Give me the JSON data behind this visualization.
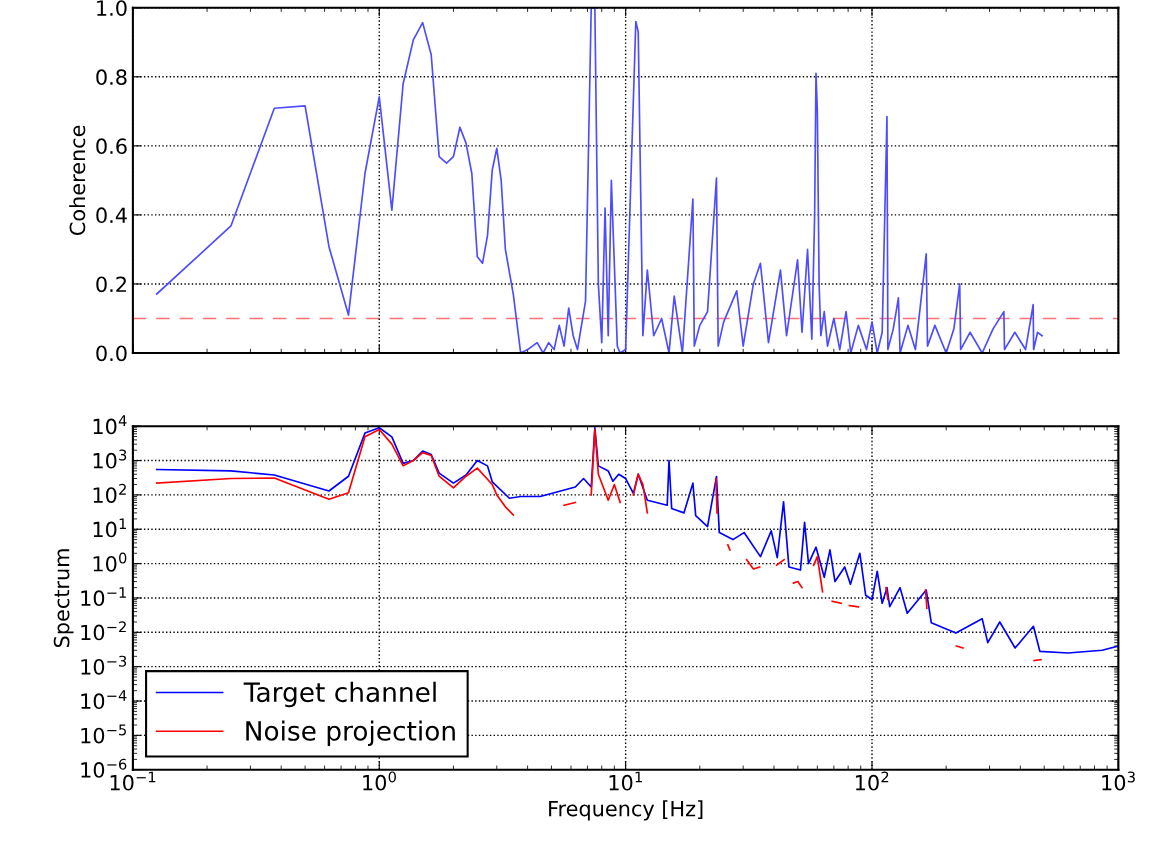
{
  "chart_data": [
    {
      "type": "line",
      "ylabel": "Coherence",
      "log": "x",
      "grid": true,
      "tick_labels": "y",
      "xlim": [
        0.1,
        1000
      ],
      "xticks": [
        {
          "value": 0.1,
          "label": null
        },
        {
          "value": 1,
          "label": null
        },
        {
          "value": 10,
          "label": null
        },
        {
          "value": 100,
          "label": null
        },
        {
          "value": 1000,
          "label": null
        }
      ],
      "ylim": [
        0,
        1.0
      ],
      "yticks": [
        {
          "value": 0,
          "label": "0.0"
        },
        {
          "value": 0.2,
          "label": "0.2"
        },
        {
          "value": 0.4,
          "label": "0.4"
        },
        {
          "value": 0.6,
          "label": "0.6"
        },
        {
          "value": 0.8,
          "label": "0.8"
        },
        {
          "value": 1.0,
          "label": "1.0"
        }
      ],
      "ref_lines": [
        {
          "axis": "y",
          "value": 0.1,
          "color": "#ff7070",
          "line_style": "dashed"
        }
      ],
      "series": [
        {
          "color": "#4d4dff",
          "x": [
            0.125,
            0.25,
            0.375,
            0.5,
            0.625,
            0.75,
            0.875,
            1.0,
            1.125,
            1.25,
            1.375,
            1.5,
            1.625,
            1.75,
            1.875,
            2.0,
            2.125,
            2.25,
            2.375,
            2.5,
            2.625,
            2.75,
            2.875,
            3.0,
            3.125,
            3.25,
            3.5,
            3.75,
            4.0,
            4.375,
            4.625,
            4.875,
            5.125,
            5.375,
            5.625,
            5.875,
            6.125,
            6.375,
            6.875,
            7.25,
            7.5,
            7.75,
            8.0,
            8.25,
            8.5,
            8.75,
            9.25,
            9.5,
            10.0,
            10.5,
            11.0,
            11.25,
            11.75,
            12.25,
            13.0,
            14.0,
            15.0,
            15.75,
            17.0,
            18.75,
            19.0,
            20.0,
            21.5,
            23.375,
            23.75,
            25.0,
            28.25,
            30.0,
            33.0,
            35.25,
            38.0,
            42.5,
            45.0,
            49.875,
            52.0,
            54.75,
            57.0,
            58.5,
            59.25,
            60.0,
            61.0,
            62.0,
            64.0,
            66.0,
            70.0,
            74.0,
            78.5,
            82.0,
            88.0,
            95.0,
            100.0,
            105.0,
            110.0,
            115.0,
            116.0,
            122.0,
            128.0,
            130.0,
            140.0,
            150.0,
            166.0,
            168.0,
            180.0,
            200.0,
            215.0,
            227.0,
            229.0,
            250.0,
            280.0,
            310.0,
            343.0,
            345.0,
            380.0,
            420.0,
            451.0,
            453.0,
            470.0,
            490.0
          ],
          "values": [
            0.171,
            0.368,
            0.709,
            0.716,
            0.308,
            0.11,
            0.52,
            0.742,
            0.414,
            0.78,
            0.907,
            0.957,
            0.864,
            0.569,
            0.55,
            0.569,
            0.654,
            0.608,
            0.52,
            0.279,
            0.26,
            0.34,
            0.53,
            0.593,
            0.5,
            0.3,
            0.17,
            0.0,
            0.01,
            0.03,
            0.0,
            0.03,
            0.01,
            0.08,
            0.02,
            0.13,
            0.05,
            0.01,
            0.15,
            1.0,
            1.0,
            0.2,
            0.03,
            0.42,
            0.05,
            0.5,
            0.02,
            0.0,
            0.01,
            0.5,
            0.96,
            0.93,
            0.05,
            0.24,
            0.05,
            0.1,
            0.0,
            0.165,
            0.0,
            0.446,
            0.02,
            0.08,
            0.12,
            0.507,
            0.02,
            0.09,
            0.18,
            0.02,
            0.2,
            0.26,
            0.03,
            0.24,
            0.05,
            0.27,
            0.06,
            0.3,
            0.04,
            0.4,
            0.81,
            0.7,
            0.2,
            0.05,
            0.12,
            0.02,
            0.1,
            0.01,
            0.12,
            0.0,
            0.08,
            0.01,
            0.09,
            0.0,
            0.06,
            0.685,
            0.01,
            0.07,
            0.16,
            0.0,
            0.08,
            0.01,
            0.287,
            0.02,
            0.08,
            0.0,
            0.07,
            0.2,
            0.01,
            0.06,
            0.0,
            0.07,
            0.12,
            0.01,
            0.06,
            0.01,
            0.14,
            0.01,
            0.06,
            0.05
          ]
        }
      ]
    },
    {
      "type": "line",
      "xlabel": "Frequency [Hz]",
      "ylabel": "Spectrum",
      "log": "xy",
      "grid": true,
      "legend": "lower left",
      "xlim": [
        0.1,
        1000
      ],
      "xticks": [
        {
          "value": 0.1,
          "label": "10$^{−1}$"
        },
        {
          "value": 1,
          "label": "10$^{0}$"
        },
        {
          "value": 10,
          "label": "10$^{1}$"
        },
        {
          "value": 100,
          "label": "10$^{2}$"
        },
        {
          "value": 1000,
          "label": "10$^{3}$"
        }
      ],
      "ylim": [
        1e-06,
        10000.0
      ],
      "yticks": [
        {
          "value": 1e-06,
          "label": "10$^{−6}$"
        },
        {
          "value": 1e-05,
          "label": "10$^{−5}$"
        },
        {
          "value": 0.0001,
          "label": "10$^{−4}$"
        },
        {
          "value": 0.001,
          "label": "10$^{−3}$"
        },
        {
          "value": 0.01,
          "label": "10$^{−2}$"
        },
        {
          "value": 0.1,
          "label": "10$^{−1}$"
        },
        {
          "value": 1,
          "label": "10$^{0}$"
        },
        {
          "value": 10,
          "label": "10$^{1}$"
        },
        {
          "value": 100,
          "label": "10$^{2}$"
        },
        {
          "value": 1000,
          "label": "10$^{3}$"
        },
        {
          "value": 10000,
          "label": "10$^{4}$"
        }
      ],
      "series": [
        {
          "name": "Target channel",
          "color": "#0000ff",
          "x": [
            0.125,
            0.25,
            0.375,
            0.625,
            0.75,
            0.875,
            1.0,
            1.125,
            1.25,
            1.375,
            1.5,
            1.625,
            1.75,
            2.0,
            2.25,
            2.5,
            2.75,
            2.875,
            3.375,
            3.75,
            4.5,
            5.125,
            6.25,
            6.75,
            7.25,
            7.5,
            7.75,
            8.5,
            8.875,
            9.375,
            10.0,
            10.75,
            11.25,
            12.25,
            14.75,
            15.0,
            15.375,
            17.25,
            18.75,
            19.25,
            21.5,
            23.375,
            24.0,
            27.25,
            30.25,
            35.25,
            39.0,
            41.25,
            43.75,
            46.0,
            51.25,
            53.25,
            55.25,
            59.25,
            64.0,
            67.5,
            70.75,
            77.5,
            81.75,
            89.25,
            94.25,
            100.0,
            105.0,
            110.0,
            115.0,
            118.0,
            130.0,
            139.0,
            166.0,
            174.0,
            219.0,
            280.0,
            295.0,
            330.0,
            381.0,
            452.0,
            480.0,
            624.0,
            860.0,
            1000.0
          ],
          "values": [
            550,
            500,
            380,
            130,
            350,
            6300,
            9000,
            4900,
            830,
            1000,
            1900,
            1500,
            430,
            220,
            380,
            1000,
            700,
            240,
            80,
            90,
            90,
            115,
            170,
            300,
            170,
            9000,
            700,
            500,
            250,
            400,
            300,
            110,
            400,
            70,
            50,
            1000,
            40,
            30,
            220,
            25,
            12,
            340,
            8,
            5,
            8,
            1.6,
            9,
            1.5,
            63,
            0.8,
            0.65,
            16,
            1,
            3,
            0.4,
            2.5,
            0.3,
            0.8,
            0.25,
            2,
            0.12,
            0.09,
            0.6,
            0.07,
            0.2,
            0.056,
            0.2,
            0.036,
            0.17,
            0.019,
            0.0095,
            0.025,
            0.005,
            0.02,
            0.0035,
            0.015,
            0.0028,
            0.0025,
            0.003,
            0.004
          ]
        },
        {
          "name": "Noise projection",
          "color": "#ff0000",
          "x": [
            0.125,
            0.25,
            0.375,
            0.625,
            0.75,
            0.875,
            1.0,
            1.125,
            1.25,
            1.375,
            1.5,
            1.625,
            1.75,
            2.0,
            2.25,
            2.5,
            2.875,
            3.0,
            3.25,
            3.5,
            4.0,
            5.625,
            6.25,
            6.5,
            7.25,
            7.5,
            7.75,
            8.5,
            9.0,
            9.5,
            10.0,
            10.75,
            11.25,
            11.75,
            12.25,
            13.0,
            23.25,
            23.5,
            24.0,
            26.0,
            26.5,
            28.0,
            31.0,
            33.0,
            35.0,
            37.0,
            41.0,
            44.0,
            45.5,
            48.0,
            50.0,
            52.0,
            55.0,
            58.0,
            60.0,
            63.0,
            65.0,
            69.0,
            75.0,
            76.0,
            81.0,
            88.0,
            90.0,
            114.0,
            116.0,
            120.0,
            165.0,
            167.0,
            180.0,
            220.0,
            234.0,
            240.0,
            455.0,
            485.0
          ],
          "values": [
            220,
            300,
            310,
            75,
            115,
            4900,
            8000,
            3000,
            700,
            1000,
            1700,
            1400,
            350,
            160,
            350,
            600,
            200,
            100,
            45,
            26,
            null,
            50,
            60,
            null,
            100,
            8000,
            400,
            70,
            200,
            60,
            null,
            100,
            400,
            200,
            30,
            null,
            300,
            30,
            null,
            3.5,
            2.5,
            null,
            1.3,
            0.7,
            0.8,
            null,
            0.9,
            1.3,
            null,
            0.27,
            0.3,
            0.2,
            null,
            0.9,
            1.6,
            0.15,
            null,
            0.08,
            0.07,
            null,
            0.06,
            0.055,
            null,
            0.2,
            0.09,
            null,
            0.17,
            0.05,
            null,
            0.004,
            0.0035,
            null,
            0.0015,
            0.0016
          ]
        }
      ]
    }
  ]
}
